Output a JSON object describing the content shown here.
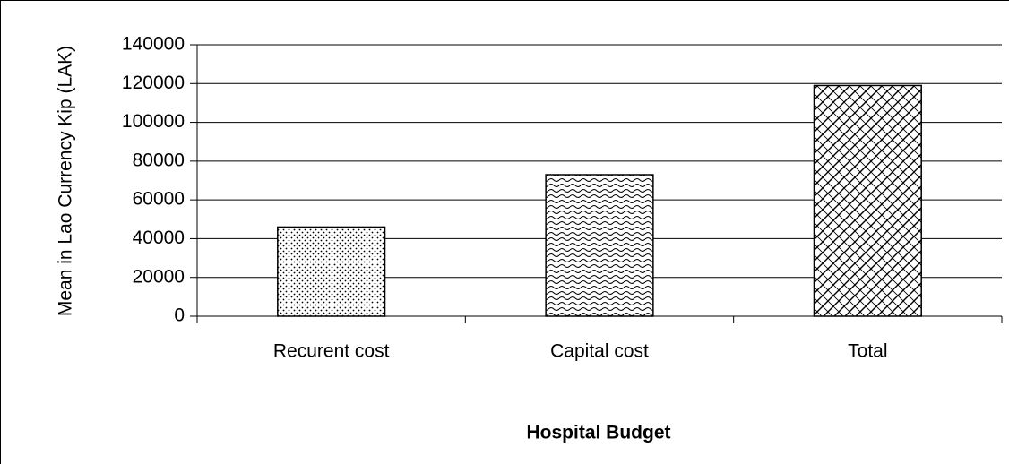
{
  "chart_data": {
    "type": "bar",
    "x_label": "Hospital Budget",
    "y_label": "Mean in Lao Currency Kip (LAK)",
    "categories": [
      "Recurent cost",
      "Capital cost",
      "Total"
    ],
    "values": [
      46000,
      73000,
      119000
    ],
    "ylim": [
      0,
      140000
    ],
    "yticks": [
      0,
      20000,
      40000,
      60000,
      80000,
      100000,
      120000,
      140000
    ],
    "grid": true
  }
}
